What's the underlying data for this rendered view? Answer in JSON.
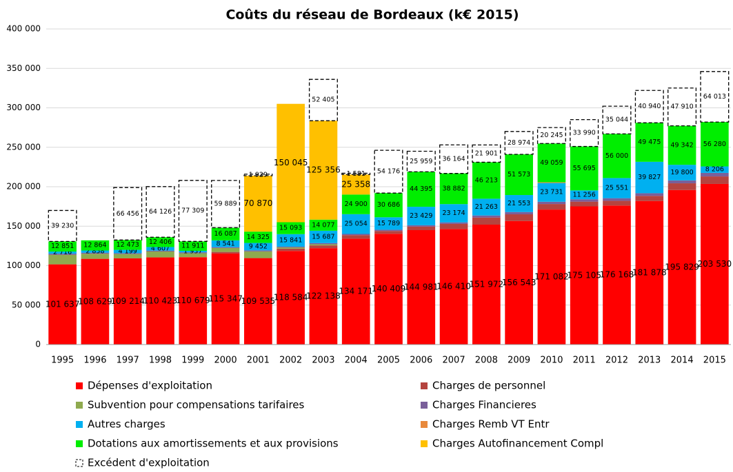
{
  "chart_data": {
    "type": "stacked-bar",
    "title": "Coûts du réseau de Bordeaux (k€ 2015)",
    "categories": [
      "1995",
      "1996",
      "1997",
      "1998",
      "1999",
      "2000",
      "2001",
      "2002",
      "2003",
      "2004",
      "2005",
      "2006",
      "2007",
      "2008",
      "2009",
      "2010",
      "2011",
      "2012",
      "2013",
      "2014",
      "2015"
    ],
    "ylim": [
      0,
      400000
    ],
    "yticks": [
      {
        "value": 0,
        "label": "0"
      },
      {
        "value": 50000,
        "label": "50 000"
      },
      {
        "value": 100000,
        "label": "100 000"
      },
      {
        "value": 150000,
        "label": "150 000"
      },
      {
        "value": 200000,
        "label": "200 000"
      },
      {
        "value": 250000,
        "label": "250 000"
      },
      {
        "value": 300000,
        "label": "300 000"
      },
      {
        "value": 350000,
        "label": "350 000"
      },
      {
        "value": 400000,
        "label": "400 000"
      }
    ],
    "grid": true,
    "series": [
      {
        "name": "Dépenses d'exploitation",
        "color": "#ff0000",
        "values": [
          101637,
          108629,
          109214,
          110423,
          110679,
          115347,
          109535,
          118584,
          122138,
          134171,
          140409,
          144981,
          146410,
          151972,
          156543,
          171082,
          175105,
          176168,
          181878,
          195829,
          203530
        ],
        "value_labels": [
          "101 637",
          "108 629",
          "109 214",
          "110 423",
          "110 679",
          "115 347",
          "109 535",
          "118 584",
          "122 138",
          "134 171",
          "140 409",
          "144 981",
          "146 410",
          "151 972",
          "156 543",
          "171 082",
          "175 105",
          "176 168",
          "181 878",
          "195 829",
          "203 530"
        ]
      },
      {
        "name": "Charges de personnel",
        "color": "#b5443f",
        "values": [
          0,
          0,
          0,
          0,
          0,
          2000,
          0,
          3000,
          3500,
          4500,
          3500,
          4500,
          6500,
          9000,
          8500,
          7000,
          6000,
          6000,
          6500,
          8500,
          9500
        ]
      },
      {
        "name": "Subvention pour compensations tarifaires",
        "color": "#8faa4f",
        "values": [
          12000,
          6500,
          5500,
          7500,
          5000,
          5000,
          8500,
          1500,
          1500,
          0,
          0,
          0,
          0,
          0,
          0,
          0,
          0,
          0,
          0,
          0,
          0
        ]
      },
      {
        "name": "Charges Financieres",
        "color": "#7a5f9a",
        "values": [
          1500,
          1200,
          1100,
          1100,
          1200,
          1100,
          1300,
          1000,
          1400,
          1500,
          1600,
          1700,
          1900,
          2600,
          2900,
          2900,
          3000,
          3300,
          3400,
          3700,
          4500
        ]
      },
      {
        "name": "Autres charges",
        "color": "#00b0f0",
        "values": [
          2716,
          2858,
          4199,
          4607,
          1937,
          8541,
          9452,
          15841,
          15687,
          25054,
          15789,
          23429,
          23174,
          21263,
          21553,
          23731,
          11256,
          25551,
          39827,
          19800,
          8206
        ],
        "value_labels": [
          "2 716",
          "2 858",
          "4 199",
          "4 607",
          "1 937",
          "8 541",
          "9 452",
          "15 841",
          "15 687",
          "25 054",
          "15 789",
          "23 429",
          "23 174",
          "21 263",
          "21 553",
          "23 731",
          "11 256",
          "25 551",
          "39 827",
          "19 800",
          "8 206"
        ]
      },
      {
        "name": "Charges Remb VT Entr",
        "color": "#e8893c",
        "values": [
          0,
          0,
          0,
          0,
          0,
          0,
          0,
          0,
          0,
          0,
          0,
          0,
          0,
          0,
          0,
          1000,
          0,
          0,
          0,
          0,
          0
        ]
      },
      {
        "name": "Dotations aux amortissements et aux provisions",
        "color": "#00ee00",
        "values": [
          12851,
          12864,
          12473,
          12406,
          11911,
          16087,
          14325,
          15093,
          14077,
          24900,
          30686,
          44395,
          38882,
          46213,
          51573,
          49059,
          55695,
          56000,
          49475,
          49342,
          56280
        ],
        "value_labels": [
          "12 851",
          "12 864",
          "12 473",
          "12 406",
          "11 911",
          "16 087",
          "14 325",
          "15 093",
          "14 077",
          "24 900",
          "30 686",
          "44 395",
          "38 882",
          "46 213",
          "51 573",
          "49 059",
          "55 695",
          "56 000",
          "49 475",
          "49 342",
          "56 280"
        ]
      },
      {
        "name": "Charges Autofinancement Compl",
        "color": "#ffc000",
        "values": [
          0,
          0,
          0,
          0,
          0,
          0,
          70870,
          150045,
          125356,
          25358,
          0,
          0,
          0,
          0,
          0,
          0,
          0,
          0,
          0,
          0,
          0
        ],
        "value_labels": [
          null,
          null,
          null,
          null,
          null,
          null,
          "70 870",
          "150 045",
          "125 356",
          "25 358",
          null,
          null,
          null,
          null,
          null,
          null,
          null,
          null,
          null,
          null,
          null
        ]
      },
      {
        "name": "Excédent d'exploitation",
        "color": "#000000",
        "dashed": true,
        "values": [
          39230,
          null,
          66456,
          64126,
          77309,
          59889,
          1929,
          null,
          52405,
          1581,
          54176,
          25959,
          36164,
          21901,
          28974,
          20245,
          33990,
          35044,
          40940,
          47910,
          64013
        ],
        "value_labels": [
          "39 230",
          null,
          "66 456",
          "64 126",
          "77 309",
          "59 889",
          "1 929",
          null,
          "52 405",
          "1 581",
          "54 176",
          "25 959",
          "36 164",
          "21 901",
          "28 974",
          "20 245",
          "33 990",
          "35 044",
          "40 940",
          "47 910",
          "64 013"
        ]
      }
    ]
  }
}
